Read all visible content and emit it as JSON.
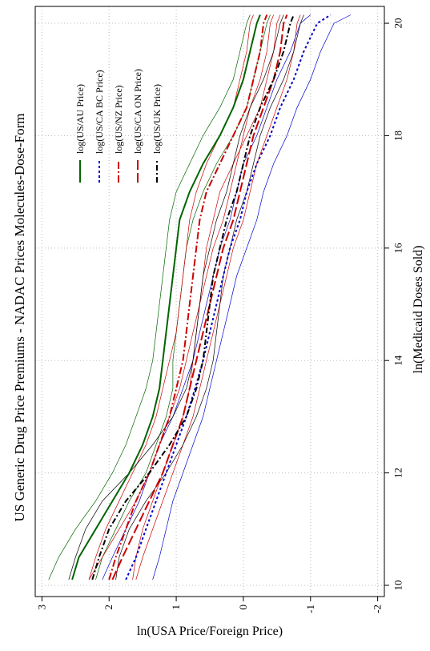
{
  "chart_data": {
    "type": "line",
    "title": "US Generic Drug Price Premiums - NADAC Prices Molecules-Dose-Form",
    "xlabel": "ln(Medicaid Doses Sold)",
    "ylabel": "ln(USA Price/Foreign Price)",
    "xlim": [
      9.8,
      20.3
    ],
    "ylim": [
      -2.1,
      3.1
    ],
    "x_ticks": [
      10,
      12,
      14,
      16,
      18,
      20
    ],
    "y_ticks": [
      3,
      2,
      1,
      0,
      -1,
      -2
    ],
    "grid": true,
    "legend_position": "top-right",
    "orientation": "rotated 90° counter-clockwise",
    "series": [
      {
        "name": "log(US/AU Price)",
        "color": "#006400",
        "dash": "",
        "x": [
          10.1,
          10.5,
          11,
          11.5,
          12,
          12.5,
          13,
          13.5,
          14,
          14.5,
          15,
          15.5,
          16,
          16.5,
          17,
          17.5,
          18,
          18.5,
          19,
          19.5,
          20,
          20.15
        ],
        "y": [
          2.55,
          2.45,
          2.2,
          1.95,
          1.7,
          1.5,
          1.35,
          1.25,
          1.2,
          1.15,
          1.1,
          1.05,
          1.0,
          0.95,
          0.8,
          0.6,
          0.35,
          0.15,
          0.0,
          -0.1,
          -0.2,
          -0.25
        ],
        "ci_upper": [
          2.9,
          2.75,
          2.5,
          2.2,
          1.95,
          1.75,
          1.6,
          1.45,
          1.35,
          1.3,
          1.25,
          1.2,
          1.15,
          1.1,
          1.0,
          0.8,
          0.6,
          0.35,
          0.15,
          0.05,
          -0.05,
          -0.1
        ],
        "ci_lower": [
          2.2,
          2.1,
          1.9,
          1.7,
          1.45,
          1.3,
          1.15,
          1.05,
          1.05,
          1.0,
          0.95,
          0.9,
          0.85,
          0.75,
          0.6,
          0.4,
          0.15,
          -0.05,
          -0.15,
          -0.25,
          -0.35,
          -0.4
        ]
      },
      {
        "name": "log(US/CA BC Price)",
        "color": "#0000cc",
        "dash": "3,3",
        "x": [
          10.1,
          10.5,
          11,
          11.5,
          12,
          12.5,
          13,
          13.5,
          14,
          14.5,
          15,
          15.5,
          16,
          16.5,
          17,
          17.5,
          18,
          18.5,
          19,
          19.5,
          20,
          20.15
        ],
        "y": [
          1.75,
          1.6,
          1.45,
          1.3,
          1.15,
          1.0,
          0.85,
          0.72,
          0.6,
          0.5,
          0.4,
          0.3,
          0.2,
          0.05,
          -0.05,
          -0.2,
          -0.4,
          -0.55,
          -0.75,
          -0.9,
          -1.1,
          -1.3
        ],
        "ci_upper": [
          2.1,
          1.95,
          1.75,
          1.55,
          1.4,
          1.25,
          1.05,
          0.9,
          0.75,
          0.65,
          0.55,
          0.45,
          0.35,
          0.2,
          0.1,
          0.0,
          -0.2,
          -0.35,
          -0.5,
          -0.7,
          -0.85,
          -1.0
        ],
        "ci_lower": [
          1.35,
          1.25,
          1.15,
          1.05,
          0.9,
          0.75,
          0.6,
          0.5,
          0.4,
          0.3,
          0.2,
          0.1,
          -0.05,
          -0.2,
          -0.3,
          -0.45,
          -0.65,
          -0.8,
          -1.0,
          -1.15,
          -1.35,
          -1.6
        ]
      },
      {
        "name": "log(US/NZ Price)",
        "color": "#cc0000",
        "dash": "9,3,2,3",
        "x": [
          10.1,
          10.5,
          11,
          11.5,
          12,
          12.5,
          13,
          13.5,
          14,
          14.5,
          15,
          15.5,
          16,
          16.5,
          17,
          17.5,
          18,
          18.5,
          19,
          19.5,
          20,
          20.15
        ],
        "y": [
          2.0,
          1.9,
          1.75,
          1.6,
          1.4,
          1.25,
          1.1,
          1.0,
          0.9,
          0.85,
          0.8,
          0.75,
          0.7,
          0.65,
          0.55,
          0.35,
          0.15,
          -0.05,
          -0.15,
          -0.25,
          -0.3,
          -0.35
        ],
        "ci_upper": [
          2.3,
          2.2,
          2.05,
          1.85,
          1.65,
          1.45,
          1.3,
          1.2,
          1.1,
          1.0,
          0.95,
          0.9,
          0.85,
          0.8,
          0.7,
          0.55,
          0.35,
          0.15,
          0.05,
          -0.05,
          -0.1,
          -0.15
        ],
        "ci_lower": [
          1.65,
          1.6,
          1.5,
          1.35,
          1.2,
          1.05,
          0.9,
          0.8,
          0.75,
          0.7,
          0.65,
          0.6,
          0.55,
          0.45,
          0.35,
          0.15,
          -0.05,
          -0.25,
          -0.35,
          -0.45,
          -0.5,
          -0.55
        ]
      },
      {
        "name": "log(US/CA ON Price)",
        "color": "#cc0000",
        "dash": "12,4",
        "x": [
          10.1,
          10.5,
          11,
          11.5,
          12,
          12.5,
          13,
          13.5,
          14,
          14.5,
          15,
          15.5,
          16,
          16.5,
          17,
          17.5,
          18,
          18.5,
          19,
          19.5,
          20,
          20.15
        ],
        "y": [
          1.95,
          1.8,
          1.6,
          1.4,
          1.2,
          1.05,
          0.9,
          0.8,
          0.7,
          0.6,
          0.5,
          0.4,
          0.3,
          0.15,
          0.05,
          -0.05,
          -0.15,
          -0.3,
          -0.45,
          -0.55,
          -0.6,
          -0.65
        ],
        "ci_upper": [
          2.3,
          2.1,
          1.85,
          1.6,
          1.4,
          1.25,
          1.1,
          0.95,
          0.85,
          0.75,
          0.65,
          0.55,
          0.45,
          0.3,
          0.2,
          0.1,
          0.0,
          -0.1,
          -0.25,
          -0.35,
          -0.4,
          -0.45
        ],
        "ci_lower": [
          1.6,
          1.5,
          1.35,
          1.2,
          1.05,
          0.9,
          0.75,
          0.65,
          0.55,
          0.45,
          0.35,
          0.25,
          0.15,
          0.0,
          -0.1,
          -0.2,
          -0.35,
          -0.5,
          -0.65,
          -0.75,
          -0.8,
          -0.85
        ]
      },
      {
        "name": "log(US/UK Price)",
        "color": "#000000",
        "dash": "7,3,2,3",
        "x": [
          10.1,
          10.5,
          11,
          11.5,
          12,
          12.5,
          13,
          13.5,
          14,
          14.5,
          15,
          15.5,
          16,
          16.5,
          17,
          17.5,
          18,
          18.5,
          19,
          19.5,
          20,
          20.15
        ],
        "y": [
          2.25,
          2.15,
          2.0,
          1.75,
          1.4,
          1.1,
          0.85,
          0.7,
          0.6,
          0.55,
          0.5,
          0.45,
          0.35,
          0.25,
          0.1,
          0.0,
          -0.1,
          -0.25,
          -0.45,
          -0.6,
          -0.7,
          -0.75
        ],
        "ci_upper": [
          2.6,
          2.5,
          2.35,
          2.1,
          1.7,
          1.35,
          1.05,
          0.85,
          0.75,
          0.7,
          0.65,
          0.6,
          0.5,
          0.4,
          0.25,
          0.15,
          0.05,
          -0.1,
          -0.3,
          -0.45,
          -0.55,
          -0.6
        ],
        "ci_lower": [
          1.9,
          1.85,
          1.7,
          1.45,
          1.15,
          0.9,
          0.7,
          0.55,
          0.45,
          0.4,
          0.35,
          0.3,
          0.2,
          0.1,
          -0.05,
          -0.15,
          -0.25,
          -0.4,
          -0.6,
          -0.75,
          -0.85,
          -0.9
        ]
      }
    ]
  }
}
